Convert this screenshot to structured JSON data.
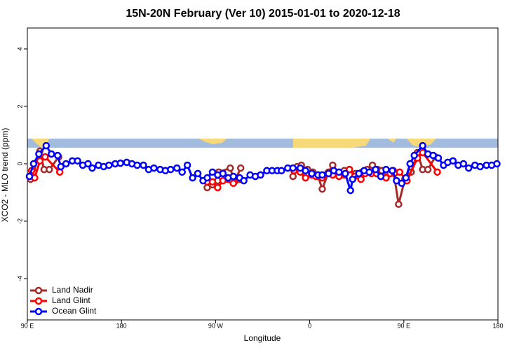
{
  "chart_data": {
    "type": "line",
    "title": "15N-20N February (Ver 10)   2015-01-01 to 2020-12-18",
    "x_label": "Longitude",
    "y_label": "XCO2 - MLO trend (ppm)",
    "xlim": [
      90,
      540
    ],
    "ylim": [
      -5.44,
      4.73
    ],
    "xticks": [
      {
        "value": 90,
        "label": "90 E"
      },
      180,
      {
        "value": 270,
        "label": "90 W"
      },
      {
        "value": 360,
        "label": "0"
      },
      {
        "value": 450,
        "label": "90 E"
      },
      {
        "value": 540,
        "label": "180"
      }
    ],
    "yticks": [
      -4,
      -2,
      0,
      2,
      4
    ],
    "legend": "bottomleft",
    "series": [
      {
        "name": "Land Nadir",
        "color": "#a52a2a",
        "x": [
          93,
          96,
          102,
          106,
          111,
          120,
          null,
          262,
          267,
          272,
          273,
          284,
          288,
          294,
          null,
          344,
          348,
          352,
          358,
          363,
          368,
          372,
          378,
          382,
          388,
          393,
          398,
          404,
          410,
          415,
          420,
          425,
          429,
          434,
          440,
          445,
          451,
          457,
          463,
          468,
          473,
          480
        ],
        "values": [
          -0.54,
          -0.29,
          0.44,
          -0.2,
          -0.2,
          0.24,
          null,
          -0.83,
          -0.73,
          -0.59,
          -0.29,
          -0.15,
          -0.63,
          -0.15,
          null,
          -0.44,
          -0.1,
          -0.05,
          -0.2,
          -0.29,
          -0.44,
          -0.88,
          -0.29,
          -0.05,
          -0.34,
          -0.24,
          -0.2,
          -0.34,
          -0.29,
          -0.2,
          -0.05,
          -0.2,
          -0.24,
          -0.29,
          -0.24,
          -1.41,
          -0.54,
          -0.29,
          0.39,
          -0.2,
          -0.2,
          0.24
        ]
      },
      {
        "name": "Land Glint",
        "color": "#ff0000",
        "x": [
          94,
          97,
          102,
          107,
          121,
          null,
          262,
          267,
          272,
          277,
          287,
          293,
          null,
          345,
          351,
          356,
          362,
          366,
          372,
          377,
          382,
          388,
          393,
          398,
          403,
          409,
          413,
          419,
          424,
          428,
          433,
          437,
          441,
          446,
          453,
          463,
          468,
          482
        ],
        "values": [
          -0.24,
          -0.49,
          0.1,
          0.24,
          -0.29,
          null,
          -0.63,
          -0.63,
          -0.83,
          -0.59,
          -0.68,
          -0.54,
          null,
          -0.24,
          -0.29,
          -0.49,
          -0.39,
          -0.44,
          -0.49,
          -0.34,
          -0.39,
          -0.44,
          -0.39,
          -0.2,
          -0.44,
          -0.54,
          -0.34,
          -0.34,
          -0.34,
          -0.44,
          -0.49,
          -0.34,
          -0.34,
          -0.29,
          -0.59,
          0.2,
          0.39,
          -0.29
        ]
      },
      {
        "name": "Ocean Glint",
        "color": "#0000ff",
        "x": [
          92,
          96,
          101,
          108,
          113,
          119,
          122,
          127,
          133,
          138,
          143,
          148,
          152,
          158,
          163,
          168,
          174,
          179,
          185,
          190,
          195,
          201,
          206,
          211,
          217,
          222,
          227,
          233,
          238,
          243,
          248,
          253,
          258,
          262,
          267,
          272,
          277,
          282,
          287,
          293,
          297,
          303,
          308,
          313,
          319,
          324,
          329,
          333,
          339,
          344,
          351,
          356,
          362,
          368,
          372,
          378,
          383,
          388,
          394,
          399,
          401,
          407,
          412,
          417,
          423,
          428,
          433,
          439,
          443,
          448,
          452,
          456,
          460,
          468,
          473,
          478,
          483,
          488,
          492,
          497,
          502,
          507,
          512,
          518,
          523,
          529,
          534,
          539
        ],
        "values": [
          -0.44,
          0,
          0.34,
          0.63,
          0.34,
          0.29,
          -0.1,
          0,
          0.1,
          0.1,
          -0.05,
          0,
          -0.15,
          -0.05,
          -0.1,
          -0.05,
          0,
          0.02,
          0.05,
          0,
          -0.05,
          -0.05,
          -0.2,
          -0.15,
          -0.2,
          -0.24,
          -0.2,
          -0.15,
          -0.29,
          -0.05,
          -0.49,
          -0.34,
          -0.59,
          -0.49,
          -0.29,
          -0.39,
          -0.34,
          -0.49,
          -0.44,
          -0.49,
          -0.59,
          -0.39,
          -0.44,
          -0.39,
          -0.24,
          -0.24,
          -0.24,
          -0.24,
          -0.15,
          -0.15,
          -0.15,
          -0.24,
          -0.34,
          -0.39,
          -0.39,
          -0.34,
          -0.24,
          -0.29,
          -0.34,
          -0.93,
          -0.54,
          -0.34,
          -0.24,
          -0.29,
          -0.2,
          -0.44,
          -0.2,
          -0.24,
          -0.59,
          -0.68,
          -0.49,
          0,
          0.29,
          0.63,
          0.34,
          0.29,
          0.2,
          -0.05,
          0.05,
          0.1,
          -0.05,
          0,
          -0.15,
          -0.05,
          -0.1,
          -0.05,
          -0.05,
          0
        ]
      }
    ]
  }
}
